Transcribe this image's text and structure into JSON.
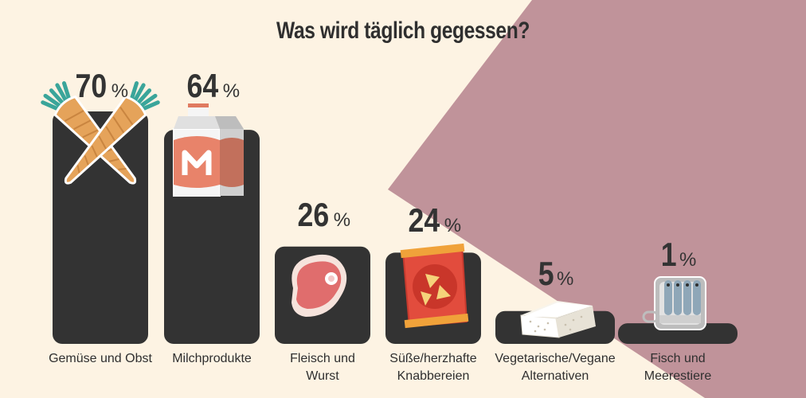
{
  "title": "Was wird täglich gegessen?",
  "unit": "%",
  "colors": {
    "background": "#fdf3e3",
    "triangle": "#c0939a",
    "bar": "#333333",
    "text": "#2f2f2f"
  },
  "chart_data": {
    "type": "bar",
    "title": "Was wird täglich gegessen?",
    "categories": [
      "Gemüse und Obst",
      "Milchprodukte",
      "Fleisch und Wurst",
      "Süße/herzhafte Knabbereien",
      "Vegetarische/Vegane Alternativen",
      "Fisch und Meerestiere"
    ],
    "values": [
      70,
      64,
      26,
      24,
      5,
      1
    ],
    "value_labels": [
      "70",
      "64",
      "26",
      "24",
      "5",
      "1"
    ],
    "label_lines": [
      [
        "Gemüse und Obst"
      ],
      [
        "Milchprodukte"
      ],
      [
        "Fleisch und",
        "Wurst"
      ],
      [
        "Süße/herzhafte",
        "Knabbereien"
      ],
      [
        "Vegetarische/Vegane",
        "Alternativen"
      ],
      [
        "Fisch und",
        "Meerestiere"
      ]
    ],
    "icons": [
      "carrot-icon",
      "milk-carton-icon",
      "steak-icon",
      "chips-bag-icon",
      "tofu-icon",
      "sardine-can-icon"
    ],
    "ylim": [
      0,
      70
    ],
    "grid": false,
    "legend": "none"
  }
}
